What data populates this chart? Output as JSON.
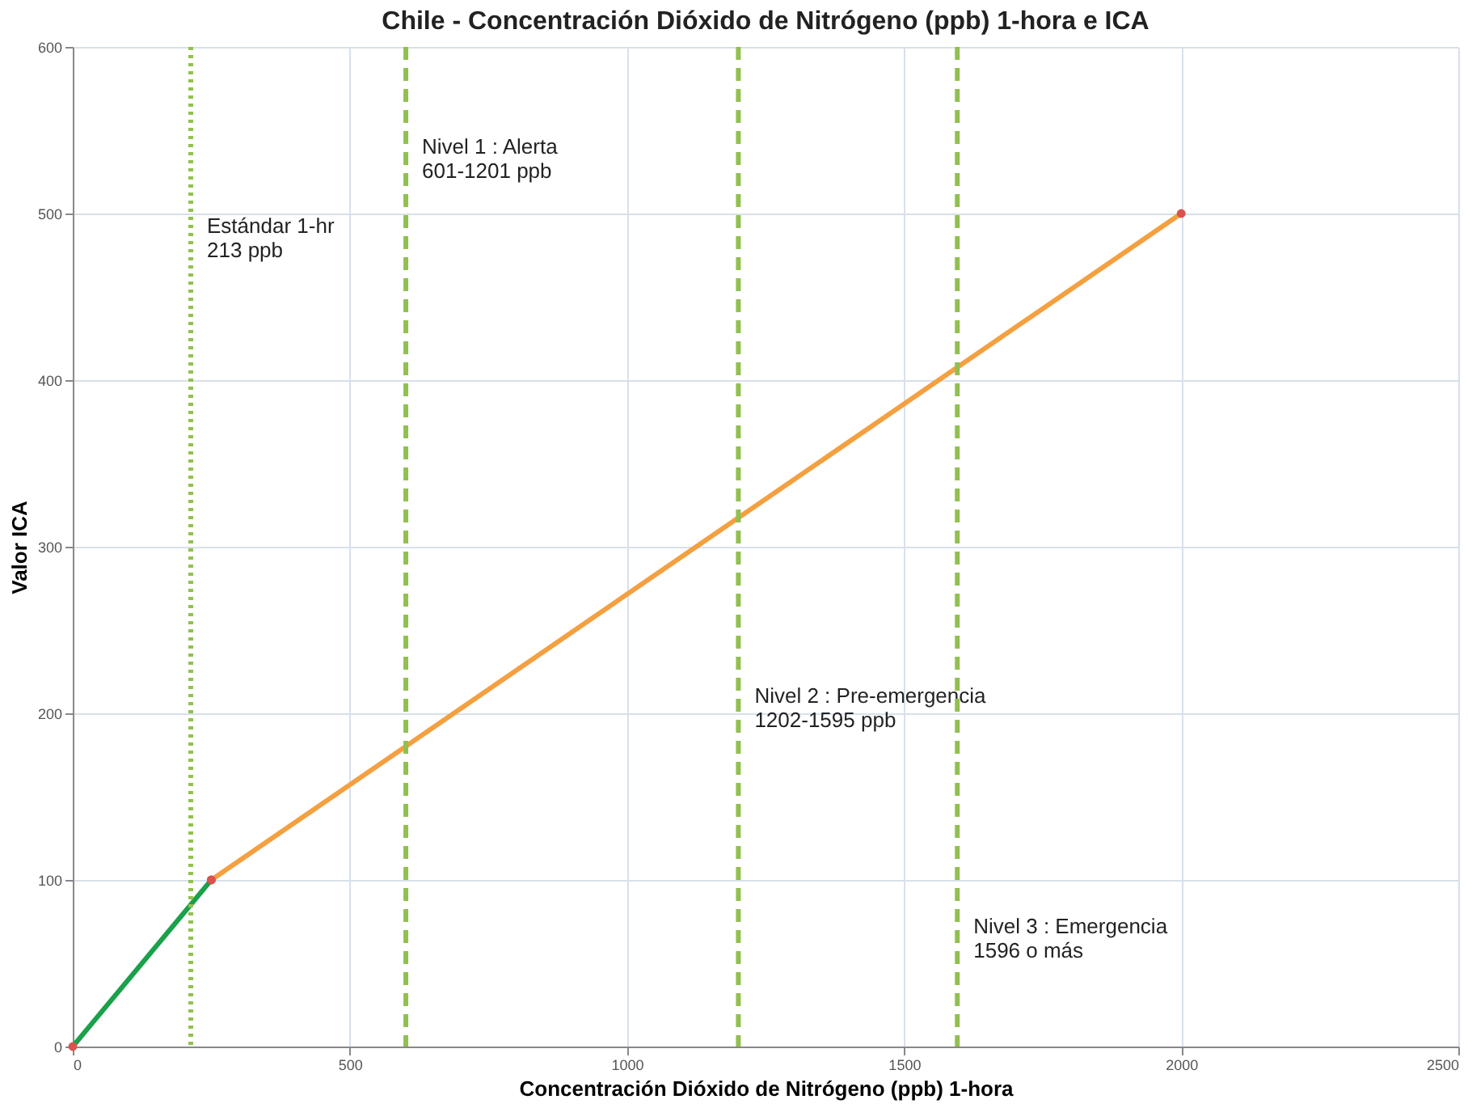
{
  "chart_data": {
    "type": "line",
    "title": "Chile - Concentración Dióxido de Nitrógeno (ppb) 1-hora e ICA",
    "xlabel": "Concentración Dióxido de Nitrógeno (ppb) 1-hora",
    "ylabel": "Valor ICA",
    "series": [
      {
        "color": "#1aa14a",
        "x": [
          0,
          250
        ],
        "values": [
          0,
          100
        ]
      },
      {
        "color": "#f4a040",
        "x": [
          250,
          2000
        ],
        "values": [
          100,
          500
        ]
      }
    ],
    "xlim": [
      0,
      2500
    ],
    "xticks": [
      0,
      500,
      1000,
      1500,
      2000,
      2500
    ],
    "ylim": [
      0,
      600
    ],
    "yticks": [
      0,
      100,
      200,
      300,
      400,
      500,
      600
    ],
    "grid": true,
    "marker": "circle",
    "line_style": "solid",
    "ref_lines": [
      {
        "axis": "x",
        "value": 213,
        "color": "#92c050",
        "line_style": "dotted",
        "label": "Estándar 1-hr\n213 ppb"
      },
      {
        "axis": "x",
        "value": 601,
        "color": "#92c050",
        "line_style": "dashed",
        "label": "Nivel 1 : Alerta\n601-1201 ppb"
      },
      {
        "axis": "x",
        "value": 1201,
        "color": "#92c050",
        "line_style": "dashed",
        "label": "Nivel 2 : Pre-emergencia\n1202-1595 ppb"
      },
      {
        "axis": "x",
        "value": 1596,
        "color": "#92c050",
        "line_style": "dashed",
        "label": "Nivel 3 : Emergencia\n1596 o más"
      }
    ]
  }
}
